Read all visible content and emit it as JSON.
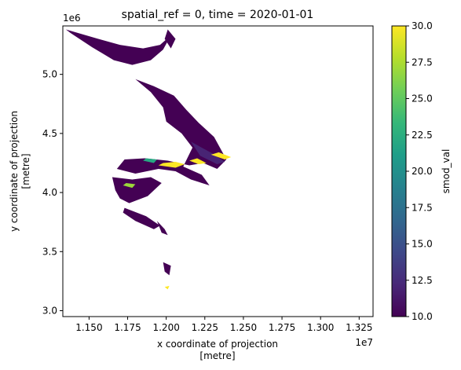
{
  "chart_data": {
    "type": "heatmap",
    "title": "spatial_ref = 0, time = 2020-01-01",
    "xlabel": "x coordinate of projection\n[metre]",
    "ylabel": "y coordinate of projection\n[metre]",
    "x_offset_label": "1e7",
    "y_offset_label": "1e6",
    "xlim": [
      11330000,
      13340000
    ],
    "ylim": [
      2950000,
      5410000
    ],
    "xticks": [
      11500000,
      11750000,
      12000000,
      12250000,
      12500000,
      12750000,
      13000000,
      13250000
    ],
    "xtick_labels": [
      "1.150",
      "1.175",
      "1.200",
      "1.225",
      "1.250",
      "1.275",
      "1.300",
      "1.325"
    ],
    "yticks": [
      3000000,
      3500000,
      4000000,
      4500000,
      5000000
    ],
    "ytick_labels": [
      "3.0",
      "3.5",
      "4.0",
      "4.5",
      "5.0"
    ],
    "colorbar": {
      "label": "smod_val",
      "colormap": "viridis",
      "vmin": 10.0,
      "vmax": 30.0,
      "ticks": [
        10.0,
        12.5,
        15.0,
        17.5,
        20.0,
        22.5,
        25.0,
        27.5,
        30.0
      ],
      "tick_labels": [
        "10.0",
        "12.5",
        "15.0",
        "17.5",
        "20.0",
        "22.5",
        "25.0",
        "27.5",
        "30.0"
      ]
    },
    "regions": [
      {
        "value": 10,
        "polygon": [
          [
            11350000,
            5380000
          ],
          [
            11560000,
            5300000
          ],
          [
            11700000,
            5250000
          ],
          [
            11850000,
            5220000
          ],
          [
            11960000,
            5250000
          ],
          [
            12030000,
            5330000
          ],
          [
            11980000,
            5210000
          ],
          [
            11900000,
            5120000
          ],
          [
            11780000,
            5080000
          ],
          [
            11660000,
            5120000
          ],
          [
            11520000,
            5230000
          ],
          [
            11380000,
            5350000
          ]
        ]
      },
      {
        "value": 10,
        "polygon": [
          [
            12010000,
            5380000
          ],
          [
            12060000,
            5300000
          ],
          [
            12030000,
            5220000
          ],
          [
            11990000,
            5300000
          ]
        ]
      },
      {
        "value": 10,
        "polygon": [
          [
            11800000,
            4960000
          ],
          [
            11920000,
            4900000
          ],
          [
            12050000,
            4820000
          ],
          [
            12130000,
            4700000
          ],
          [
            12210000,
            4590000
          ],
          [
            12310000,
            4470000
          ],
          [
            12390000,
            4280000
          ],
          [
            12330000,
            4200000
          ],
          [
            12240000,
            4250000
          ],
          [
            12150000,
            4230000
          ],
          [
            12010000,
            4270000
          ],
          [
            11860000,
            4290000
          ],
          [
            11730000,
            4280000
          ],
          [
            11680000,
            4200000
          ],
          [
            11800000,
            4160000
          ],
          [
            11950000,
            4200000
          ],
          [
            12060000,
            4180000
          ],
          [
            12160000,
            4110000
          ],
          [
            12280000,
            4060000
          ],
          [
            12230000,
            4150000
          ],
          [
            12110000,
            4220000
          ],
          [
            12170000,
            4380000
          ],
          [
            12100000,
            4500000
          ],
          [
            12000000,
            4600000
          ],
          [
            11980000,
            4720000
          ],
          [
            11900000,
            4850000
          ]
        ]
      },
      {
        "value": 10,
        "polygon": [
          [
            11650000,
            4130000
          ],
          [
            11780000,
            4110000
          ],
          [
            11900000,
            4130000
          ],
          [
            11970000,
            4080000
          ],
          [
            11880000,
            3970000
          ],
          [
            11760000,
            3910000
          ],
          [
            11700000,
            3950000
          ],
          [
            11670000,
            4020000
          ]
        ]
      },
      {
        "value": 10,
        "polygon": [
          [
            11730000,
            3870000
          ],
          [
            11870000,
            3800000
          ],
          [
            11960000,
            3720000
          ],
          [
            11920000,
            3690000
          ],
          [
            11800000,
            3760000
          ],
          [
            11720000,
            3830000
          ]
        ]
      },
      {
        "value": 10,
        "polygon": [
          [
            11940000,
            3760000
          ],
          [
            11990000,
            3690000
          ],
          [
            12010000,
            3640000
          ],
          [
            11970000,
            3660000
          ]
        ]
      },
      {
        "value": 10,
        "polygon": [
          [
            11980000,
            3410000
          ],
          [
            12030000,
            3380000
          ],
          [
            12020000,
            3300000
          ],
          [
            11990000,
            3330000
          ]
        ]
      },
      {
        "value": 12,
        "polygon": [
          [
            12160000,
            4430000
          ],
          [
            12300000,
            4330000
          ],
          [
            12380000,
            4260000
          ],
          [
            12330000,
            4240000
          ],
          [
            12220000,
            4310000
          ]
        ]
      },
      {
        "value": 30,
        "polygon": [
          [
            11950000,
            4230000
          ],
          [
            12060000,
            4210000
          ],
          [
            12120000,
            4240000
          ],
          [
            12060000,
            4260000
          ],
          [
            11980000,
            4250000
          ]
        ]
      },
      {
        "value": 30,
        "polygon": [
          [
            12150000,
            4270000
          ],
          [
            12210000,
            4240000
          ],
          [
            12260000,
            4250000
          ],
          [
            12200000,
            4290000
          ]
        ]
      },
      {
        "value": 30,
        "polygon": [
          [
            12290000,
            4320000
          ],
          [
            12380000,
            4280000
          ],
          [
            12420000,
            4300000
          ],
          [
            12340000,
            4340000
          ]
        ]
      },
      {
        "value": 27,
        "polygon": [
          [
            11720000,
            4060000
          ],
          [
            11780000,
            4040000
          ],
          [
            11800000,
            4070000
          ],
          [
            11740000,
            4080000
          ]
        ]
      },
      {
        "value": 22,
        "polygon": [
          [
            11850000,
            4270000
          ],
          [
            11920000,
            4250000
          ],
          [
            11940000,
            4280000
          ],
          [
            11870000,
            4290000
          ]
        ]
      },
      {
        "value": 30,
        "polygon": [
          [
            11990000,
            3200000
          ],
          [
            12010000,
            3180000
          ],
          [
            12020000,
            3210000
          ]
        ]
      }
    ]
  }
}
